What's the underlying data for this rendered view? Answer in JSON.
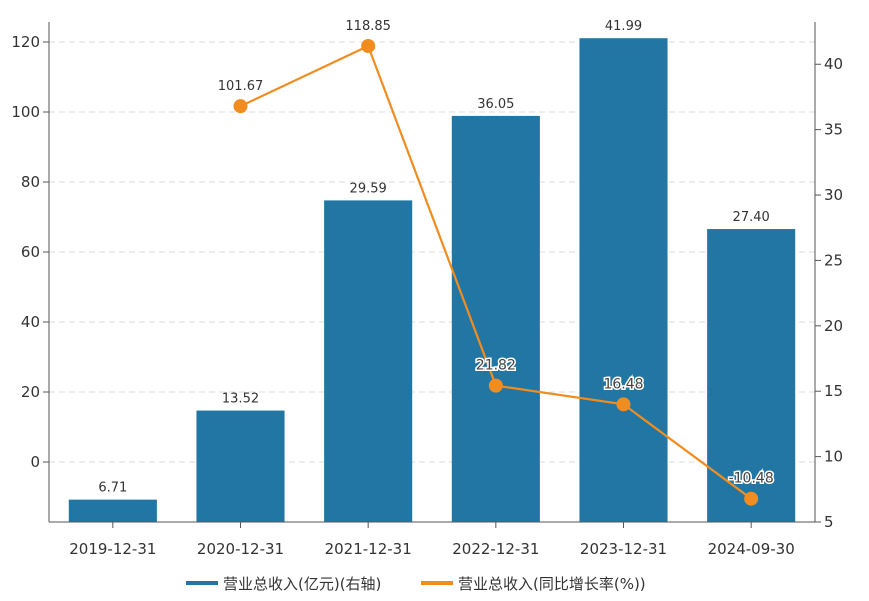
{
  "chart_data": {
    "type": "bar+line",
    "categories": [
      "2019-12-31",
      "2020-12-31",
      "2021-12-31",
      "2022-12-31",
      "2023-12-31",
      "2024-09-30"
    ],
    "series": [
      {
        "name": "营业总收入(亿元)(右轴)",
        "type": "bar",
        "axis": "right",
        "color": "#2276A3",
        "values": [
          6.71,
          13.52,
          29.59,
          36.05,
          41.99,
          27.4
        ],
        "labels": [
          "6.71",
          "13.52",
          "29.59",
          "36.05",
          "41.99",
          "27.40"
        ]
      },
      {
        "name": "营业总收入(同比增长率(%))",
        "type": "line",
        "axis": "left",
        "color": "#F28C1E",
        "values": [
          null,
          101.67,
          118.85,
          21.82,
          16.48,
          -10.48
        ],
        "labels": [
          "",
          "101.67",
          "118.85",
          "21.82",
          "16.48",
          "-10.48"
        ]
      }
    ],
    "left_axis": {
      "ticks": [
        0,
        20,
        40,
        60,
        80,
        100,
        120
      ],
      "ylim": [
        -17.14,
        125.71
      ]
    },
    "right_axis": {
      "ticks": [
        5,
        10,
        15,
        20,
        25,
        30,
        35,
        40
      ],
      "ylim": [
        5,
        43.23
      ]
    },
    "grid": true,
    "legend_position": "bottom"
  }
}
